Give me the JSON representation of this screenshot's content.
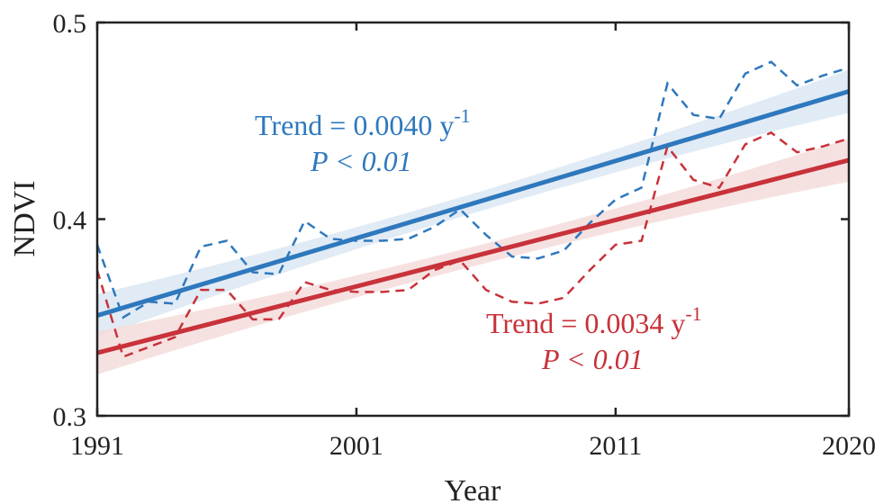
{
  "chart_data": {
    "type": "line",
    "xlabel": "Year",
    "ylabel": "NDVI",
    "xlim": [
      1991,
      2020
    ],
    "ylim": [
      0.3,
      0.5
    ],
    "xticks": [
      "1991",
      "2001",
      "2011",
      "2020"
    ],
    "yticks": [
      "0.3",
      "0.4",
      "0.5"
    ],
    "x": [
      1991,
      1992,
      1993,
      1994,
      1995,
      1996,
      1997,
      1998,
      1999,
      2000,
      2001,
      2002,
      2003,
      2004,
      2005,
      2006,
      2007,
      2008,
      2009,
      2010,
      2011,
      2012,
      2013,
      2014,
      2015,
      2016,
      2017,
      2018,
      2019,
      2020
    ],
    "series": [
      {
        "name": "blue",
        "color": "#2e78bd",
        "band_color": "#dce8f3",
        "values": [
          0.387,
          0.35,
          0.358,
          0.357,
          0.386,
          0.389,
          0.373,
          0.372,
          0.399,
          0.39,
          0.389,
          0.389,
          0.39,
          0.396,
          0.405,
          0.392,
          0.381,
          0.38,
          0.384,
          0.398,
          0.41,
          0.416,
          0.469,
          0.453,
          0.451,
          0.474,
          0.48,
          0.468,
          0.473,
          0.477
        ],
        "trend": [
          0.351,
          0.465
        ],
        "ci_halfwidth_ends": 0.011,
        "ci_halfwidth_mid": 0.005,
        "annotation": {
          "trend": "Trend = 0.0040 y",
          "exp": "-1",
          "p": "P < 0.01"
        }
      },
      {
        "name": "red",
        "color": "#c8323a",
        "band_color": "#f5dcdc",
        "values": [
          0.374,
          0.33,
          0.335,
          0.34,
          0.364,
          0.364,
          0.349,
          0.349,
          0.368,
          0.364,
          0.363,
          0.363,
          0.364,
          0.374,
          0.379,
          0.364,
          0.358,
          0.357,
          0.36,
          0.374,
          0.387,
          0.389,
          0.437,
          0.42,
          0.416,
          0.438,
          0.444,
          0.434,
          0.437,
          0.441
        ],
        "trend": [
          0.332,
          0.43
        ],
        "ci_halfwidth_ends": 0.011,
        "ci_halfwidth_mid": 0.005,
        "annotation": {
          "trend": "Trend = 0.0034 y",
          "exp": "-1",
          "p": "P < 0.01"
        }
      }
    ]
  }
}
